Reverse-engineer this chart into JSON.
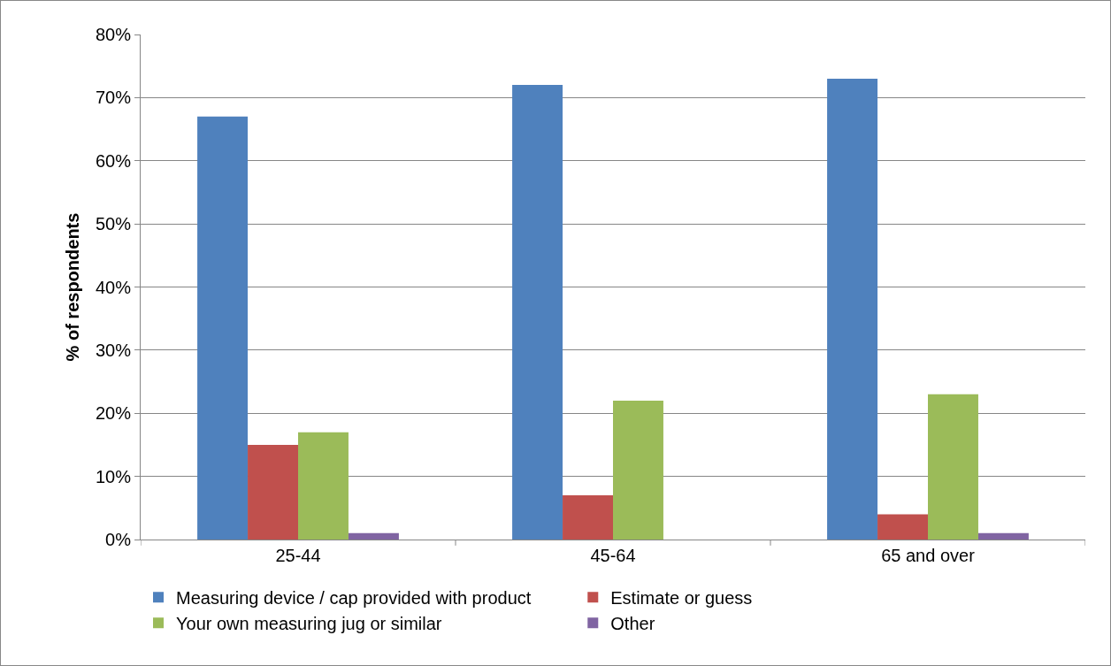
{
  "chart_data": {
    "type": "bar",
    "ylabel": "% of respondents",
    "categories": [
      "25-44",
      "45-64",
      "65 and over"
    ],
    "series": [
      {
        "name": "Measuring device / cap provided with product",
        "color": "#4f81bd",
        "values": [
          67,
          72,
          73
        ]
      },
      {
        "name": "Estimate or guess",
        "color": "#c0504d",
        "values": [
          15,
          7,
          4
        ]
      },
      {
        "name": "Your own measuring jug or similar",
        "color": "#9bbb59",
        "values": [
          17,
          22,
          23
        ]
      },
      {
        "name": "Other",
        "color": "#8064a2",
        "values": [
          1,
          0,
          1
        ]
      }
    ],
    "ylim": [
      0,
      80
    ],
    "yticks": [
      {
        "value": 0,
        "label": "0%"
      },
      {
        "value": 10,
        "label": "10%"
      },
      {
        "value": 20,
        "label": "20%"
      },
      {
        "value": 30,
        "label": "30%"
      },
      {
        "value": 40,
        "label": "40%"
      },
      {
        "value": 50,
        "label": "50%"
      },
      {
        "value": 60,
        "label": "60%"
      },
      {
        "value": 70,
        "label": "70%"
      },
      {
        "value": 80,
        "label": "80%"
      }
    ],
    "grid": "y",
    "legend": "bottom"
  }
}
